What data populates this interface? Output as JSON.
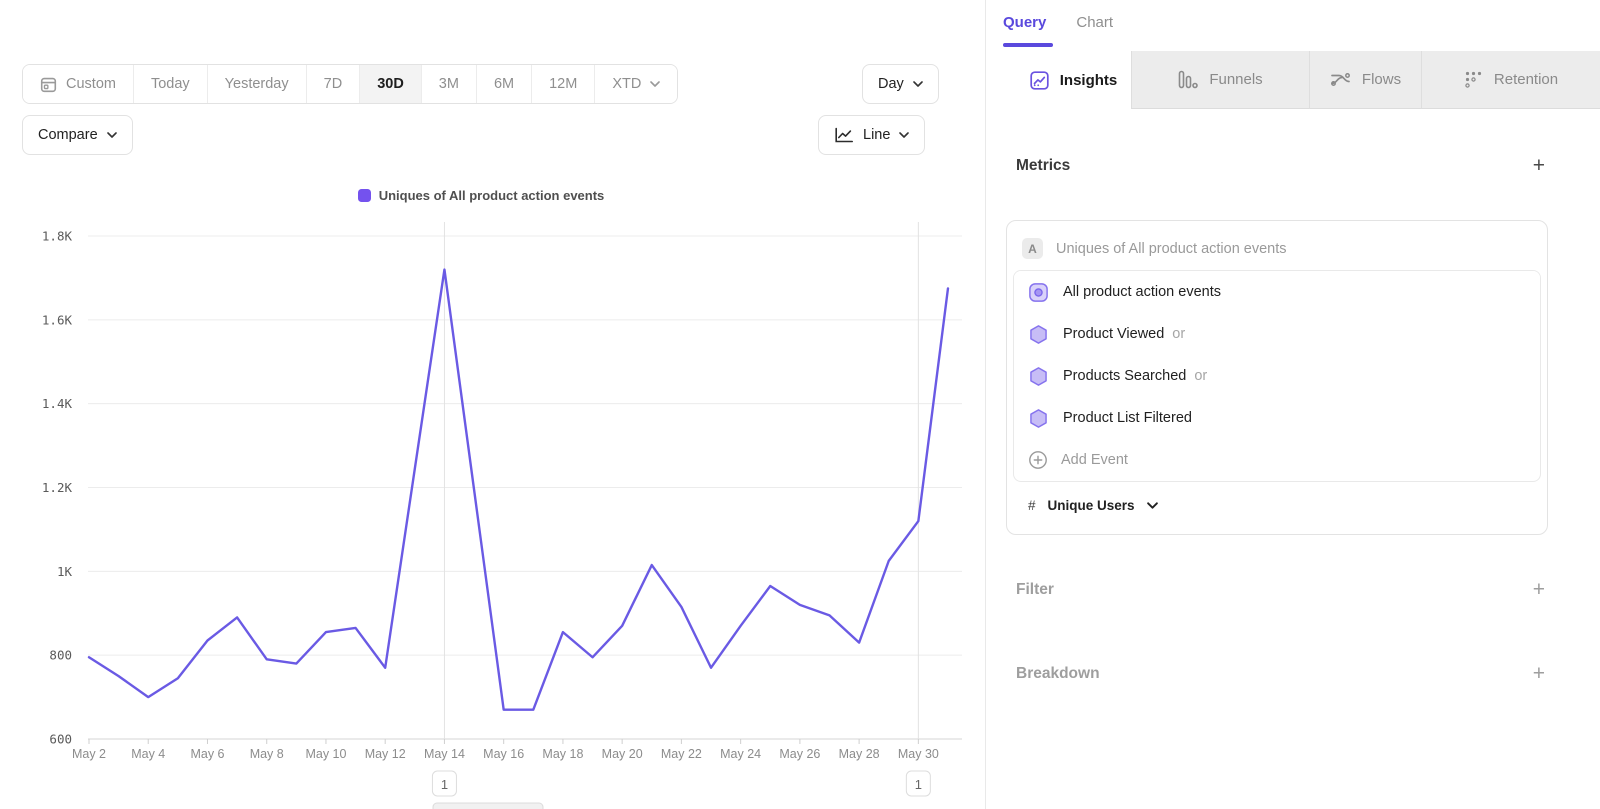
{
  "colors": {
    "accent_purple": "#5a49dd",
    "line_purple": "#6a5ae4",
    "legend_swatch": "#7452ee",
    "hexagon_fill": "#c7bdf6",
    "hexagon_stroke": "#8673ee"
  },
  "toolbar": {
    "date_ranges": [
      "Custom",
      "Today",
      "Yesterday",
      "7D",
      "30D",
      "3M",
      "6M",
      "12M",
      "XTD"
    ],
    "selected_range": "30D",
    "granularity_label": "Day",
    "compare_label": "Compare",
    "chart_type_label": "Line"
  },
  "chart_data": {
    "type": "line",
    "legend": [
      "Uniques of All product action events"
    ],
    "x": [
      "May 2",
      "May 3",
      "May 4",
      "May 5",
      "May 6",
      "May 7",
      "May 8",
      "May 9",
      "May 10",
      "May 11",
      "May 12",
      "May 13",
      "May 14",
      "May 15",
      "May 16",
      "May 17",
      "May 18",
      "May 19",
      "May 20",
      "May 21",
      "May 22",
      "May 23",
      "May 24",
      "May 25",
      "May 26",
      "May 27",
      "May 28",
      "May 29",
      "May 30",
      "May 31"
    ],
    "values": [
      795,
      750,
      700,
      745,
      835,
      890,
      790,
      780,
      855,
      865,
      770,
      1245,
      1720,
      1195,
      670,
      670,
      855,
      795,
      870,
      1015,
      915,
      770,
      870,
      965,
      920,
      895,
      830,
      1025,
      1120,
      1675
    ],
    "x_tick_labels": [
      "May 2",
      "May 4",
      "May 6",
      "May 8",
      "May 10",
      "May 12",
      "May 14",
      "May 16",
      "May 18",
      "May 20",
      "May 22",
      "May 24",
      "May 26",
      "May 28",
      "May 30"
    ],
    "y_ticks": [
      {
        "value": 600,
        "label": "600"
      },
      {
        "value": 800,
        "label": "800"
      },
      {
        "value": 1000,
        "label": "1K"
      },
      {
        "value": 1200,
        "label": "1.2K"
      },
      {
        "value": 1400,
        "label": "1.4K"
      },
      {
        "value": 1600,
        "label": "1.6K"
      },
      {
        "value": 1800,
        "label": "1.8K"
      }
    ],
    "ylim": [
      600,
      1800
    ],
    "grid": "horizontal",
    "legend_position": "top",
    "line_color": "#6a5ae4",
    "annotations": [
      {
        "x": "May 14",
        "label": "1"
      },
      {
        "x": "May 30",
        "label": "1"
      }
    ]
  },
  "panel": {
    "view_tabs": [
      {
        "label": "Query",
        "active": true
      },
      {
        "label": "Chart",
        "active": false
      }
    ],
    "report_tabs": [
      {
        "label": "Insights",
        "active": true
      },
      {
        "label": "Funnels",
        "active": false
      },
      {
        "label": "Flows",
        "active": false
      },
      {
        "label": "Retention",
        "active": false
      }
    ],
    "metrics": {
      "heading": "Metrics",
      "metric": {
        "badge": "A",
        "label": "Uniques of All product action events",
        "events": [
          {
            "name": "All product action events",
            "suffix": "",
            "icon": "event-group"
          },
          {
            "name": "Product Viewed",
            "suffix": "or",
            "icon": "event-hexagon"
          },
          {
            "name": "Products Searched",
            "suffix": "or",
            "icon": "event-hexagon"
          },
          {
            "name": "Product List Filtered",
            "suffix": "",
            "icon": "event-hexagon"
          }
        ],
        "add_event_label": "Add Event",
        "aggregation": {
          "prefix": "#",
          "label": "Unique Users"
        }
      }
    },
    "sections": [
      {
        "label": "Filter"
      },
      {
        "label": "Breakdown"
      }
    ]
  }
}
